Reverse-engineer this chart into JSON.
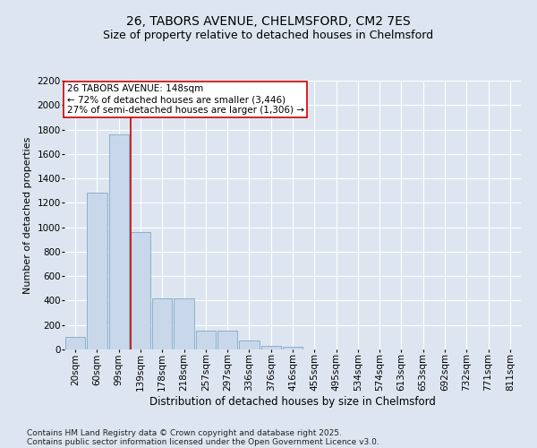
{
  "title1": "26, TABORS AVENUE, CHELMSFORD, CM2 7ES",
  "title2": "Size of property relative to detached houses in Chelmsford",
  "xlabel": "Distribution of detached houses by size in Chelmsford",
  "ylabel": "Number of detached properties",
  "categories": [
    "20sqm",
    "60sqm",
    "99sqm",
    "139sqm",
    "178sqm",
    "218sqm",
    "257sqm",
    "297sqm",
    "336sqm",
    "376sqm",
    "416sqm",
    "455sqm",
    "495sqm",
    "534sqm",
    "574sqm",
    "613sqm",
    "653sqm",
    "692sqm",
    "732sqm",
    "771sqm",
    "811sqm"
  ],
  "values": [
    100,
    1280,
    1760,
    960,
    420,
    420,
    155,
    155,
    70,
    30,
    20,
    0,
    0,
    0,
    0,
    0,
    0,
    0,
    0,
    0,
    0
  ],
  "bar_color": "#c8d8ea",
  "bar_edge_color": "#8ab0cc",
  "vline_color": "#cc0000",
  "vline_x_index": 3,
  "annotation_text": "26 TABORS AVENUE: 148sqm\n← 72% of detached houses are smaller (3,446)\n27% of semi-detached houses are larger (1,306) →",
  "annotation_box_color": "#ffffff",
  "annotation_box_edge": "#cc0000",
  "ylim": [
    0,
    2200
  ],
  "yticks": [
    0,
    200,
    400,
    600,
    800,
    1000,
    1200,
    1400,
    1600,
    1800,
    2000,
    2200
  ],
  "background_color": "#dde6f0",
  "plot_bg_color": "#dde6f0",
  "grid_color": "#ffffff",
  "footer1": "Contains HM Land Registry data © Crown copyright and database right 2025.",
  "footer2": "Contains public sector information licensed under the Open Government Licence v3.0.",
  "title1_fontsize": 10,
  "title2_fontsize": 9,
  "xlabel_fontsize": 8.5,
  "ylabel_fontsize": 8,
  "tick_fontsize": 7.5,
  "annotation_fontsize": 7.5,
  "footer_fontsize": 6.5
}
